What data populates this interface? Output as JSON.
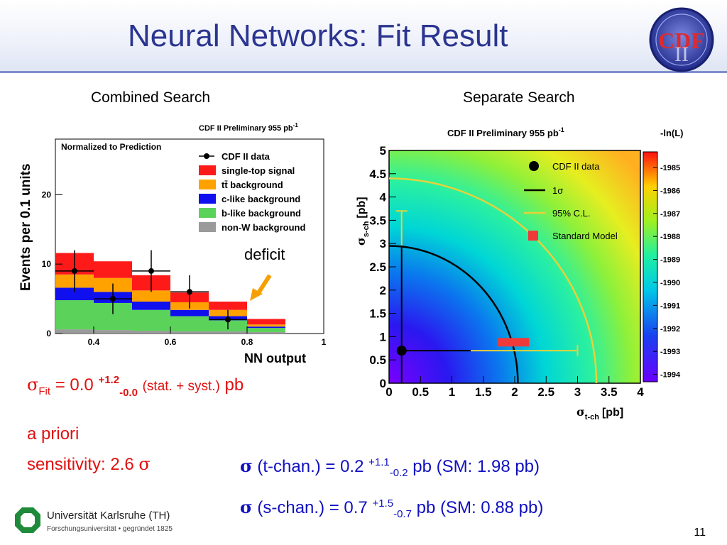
{
  "slide": {
    "title": "Neural Networks: Fit Result",
    "page_number": "11",
    "logo_text": "CDF",
    "logo_roman": "II"
  },
  "left_plot": {
    "caption": "Combined Search",
    "header": "CDF II Preliminary 955 pb",
    "header_sup": "-1",
    "inset_label": "Normalized to Prediction",
    "ylabel": "Events per 0.1 units",
    "xlabel": "NN output",
    "annotation": "deficit",
    "legend": [
      "CDF II data",
      "single-top signal",
      "tt̄ background",
      "c-like background",
      "b-like background",
      "non-W background"
    ],
    "y_ticks": [
      "20",
      "10",
      "0"
    ],
    "x_ticks": [
      "0.4",
      "0.6",
      "0.8",
      "1"
    ]
  },
  "right_plot": {
    "caption": "Separate Search",
    "header": "CDF II Preliminary 955 pb",
    "header_sup": "-1",
    "colorbar_title": "-ln(L)",
    "colorbar_ticks": [
      "-1985",
      "-1986",
      "-1987",
      "-1988",
      "-1989",
      "-1990",
      "-1991",
      "-1992",
      "-1993",
      "-1994"
    ],
    "ylabel_base": "σ",
    "ylabel_sub": "s-ch",
    "ylabel_unit": "[pb]",
    "xlabel_base": "σ",
    "xlabel_sub": "t-ch",
    "xlabel_unit": "[pb]",
    "legend": [
      "CDF II data",
      "1σ",
      "95% C.L.",
      "Standard Model"
    ],
    "x_ticks": [
      "0",
      "0.5",
      "1",
      "1.5",
      "2",
      "2.5",
      "3",
      "3.5",
      "4"
    ],
    "y_ticks": [
      "5",
      "4.5",
      "4",
      "3.5",
      "3",
      "2.5",
      "2",
      "1.5",
      "1",
      "0.5",
      "0"
    ]
  },
  "results": {
    "sigma": "σ",
    "fit_sub": "Fit",
    "fit_eq": " = 0.0 ",
    "fit_up": "+1.2",
    "fit_down": "-0.0",
    "fit_stat": "(stat. + syst.)",
    "fit_unit": " pb",
    "apriori_line1": "a priori",
    "apriori_line2": "sensitivity: 2.6 ",
    "t_label": " (t-chan.)  = 0.2 ",
    "t_up": "+1.1",
    "t_down": "-0.2",
    "t_rest": " pb  (SM: 1.98 pb)",
    "s_label": "  (s-chan.) = 0.7 ",
    "s_up": "+1.5",
    "s_down": "-0.7",
    "s_rest": " pb (SM: 0.88 pb)"
  },
  "footer": {
    "university": "Universität Karlsruhe (TH)",
    "university_sub": "Forschungsuniversität • gegründet 1825"
  },
  "chart_data": [
    {
      "type": "bar",
      "title": "CDF II Preliminary 955 pb-1",
      "xlabel": "NN output",
      "ylabel": "Events per 0.1 units",
      "bin_edges": [
        0.3,
        0.4,
        0.5,
        0.6,
        0.7,
        0.8,
        0.9
      ],
      "xlim": [
        0.3,
        1.0
      ],
      "ylim": [
        0,
        28
      ],
      "stacked_series": [
        {
          "name": "non-W background",
          "color": "#9a9a9a",
          "values": [
            0.6,
            0.5,
            0.4,
            0.3,
            0.3,
            0.2
          ]
        },
        {
          "name": "b-like background",
          "color": "#5bd35b",
          "values": [
            4.2,
            3.9,
            3.0,
            2.2,
            1.6,
            0.6
          ]
        },
        {
          "name": "c-like background",
          "color": "#1010ee",
          "values": [
            1.8,
            1.6,
            1.2,
            0.9,
            0.6,
            0.2
          ]
        },
        {
          "name": "tt̄ background",
          "color": "#ffa200",
          "values": [
            1.9,
            2.0,
            1.6,
            1.1,
            0.9,
            0.3
          ]
        },
        {
          "name": "single-top signal",
          "color": "#ff1a1a",
          "values": [
            3.1,
            2.4,
            2.2,
            1.4,
            1.2,
            0.8
          ]
        }
      ],
      "data_points": [
        {
          "name": "CDF II data",
          "x": [
            0.35,
            0.45,
            0.55,
            0.65,
            0.75
          ],
          "y": [
            9.0,
            5.0,
            9.0,
            6.0,
            2.0
          ],
          "yerr": [
            3.0,
            2.2,
            3.0,
            2.4,
            1.4
          ]
        }
      ]
    },
    {
      "type": "heatmap",
      "title": "CDF II Preliminary 955 pb-1",
      "xlabel": "σt-ch [pb]",
      "ylabel": "σs-ch [pb]",
      "xlim": [
        0,
        4
      ],
      "ylim": [
        0,
        5
      ],
      "zlim": [
        -1994,
        -1985
      ],
      "colorbar_label": "-ln(L)",
      "points": [
        {
          "name": "CDF II data",
          "x": 0.2,
          "y": 0.7
        },
        {
          "name": "Standard Model",
          "x": 1.98,
          "y": 0.88
        }
      ],
      "contours": [
        {
          "name": "1σ",
          "level": "1 sigma",
          "x_intercept": 2.05,
          "y_intercept": 2.95
        },
        {
          "name": "95% C.L.",
          "level": "95%",
          "x_intercept": 3.3,
          "y_intercept": 4.4
        }
      ],
      "errorbars": {
        "x": [
          0.2,
          1.3,
          3.0
        ],
        "y": [
          0.7,
          0,
          3.7
        ]
      }
    }
  ]
}
